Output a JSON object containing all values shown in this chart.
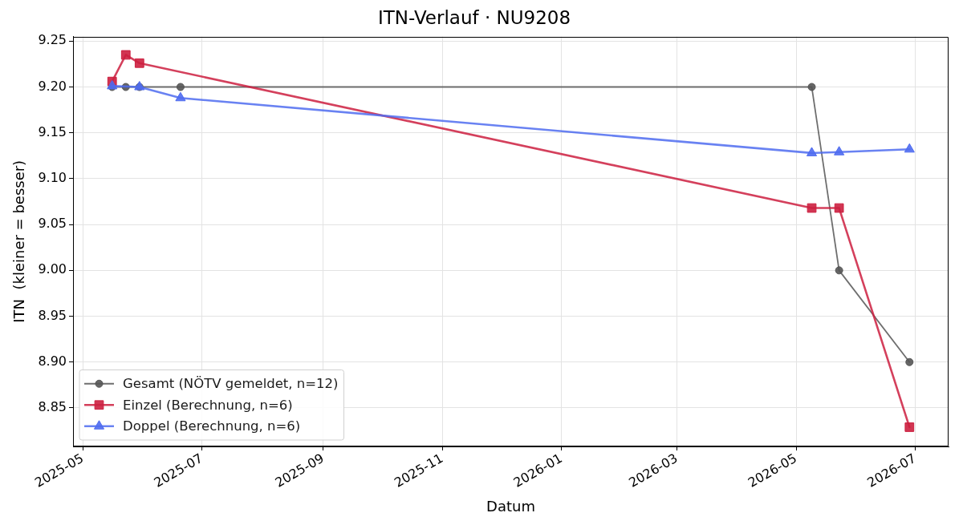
{
  "chart_data": {
    "type": "line",
    "title": "ITN-Verlauf · NU9208",
    "xlabel": "Datum",
    "ylabel": "ITN  (kleiner = besser)",
    "series": [
      {
        "name": "Gesamt (NÖTV gemeldet, n=12)",
        "color": "#555555",
        "marker": "circle",
        "x": [
          "2025-05-16",
          "2025-05-23",
          "2025-05-30",
          "2025-06-20",
          "2026-05-09",
          "2026-05-23",
          "2026-06-28"
        ],
        "values": [
          9.2,
          9.2,
          9.2,
          9.2,
          9.2,
          9.0,
          8.9
        ]
      },
      {
        "name": "Einzel (Berechnung, n=6)",
        "color": "#cc1f3f",
        "marker": "square",
        "x": [
          "2025-05-16",
          "2025-05-23",
          "2025-05-30",
          "2026-05-09",
          "2026-05-23",
          "2026-06-28"
        ],
        "values": [
          9.206,
          9.235,
          9.226,
          9.068,
          9.068,
          8.829
        ]
      },
      {
        "name": "Doppel (Berechnung, n=6)",
        "color": "#4f6cf0",
        "marker": "triangle",
        "x": [
          "2025-05-16",
          "2025-05-30",
          "2025-06-20",
          "2026-05-09",
          "2026-05-23",
          "2026-06-28"
        ],
        "values": [
          9.201,
          9.2,
          9.188,
          9.128,
          9.129,
          9.132
        ]
      }
    ],
    "xlim": [
      "2025-04-26",
      "2026-07-18"
    ],
    "xticks": [
      "2025-05",
      "2025-07",
      "2025-09",
      "2025-11",
      "2026-01",
      "2026-03",
      "2026-05",
      "2026-07"
    ],
    "ylim": [
      8.808,
      9.255
    ],
    "yticks": [
      {
        "value": 8.85,
        "label": "8.85"
      },
      {
        "value": 8.9,
        "label": "8.90"
      },
      {
        "value": 8.95,
        "label": "8.95"
      },
      {
        "value": 9.0,
        "label": "9.00"
      },
      {
        "value": 9.05,
        "label": "9.05"
      },
      {
        "value": 9.1,
        "label": "9.10"
      },
      {
        "value": 9.15,
        "label": "9.15"
      },
      {
        "value": 9.2,
        "label": "9.20"
      },
      {
        "value": 9.25,
        "label": "9.25"
      }
    ],
    "grid": true,
    "legend": "bottom left",
    "line_style": "solid"
  }
}
